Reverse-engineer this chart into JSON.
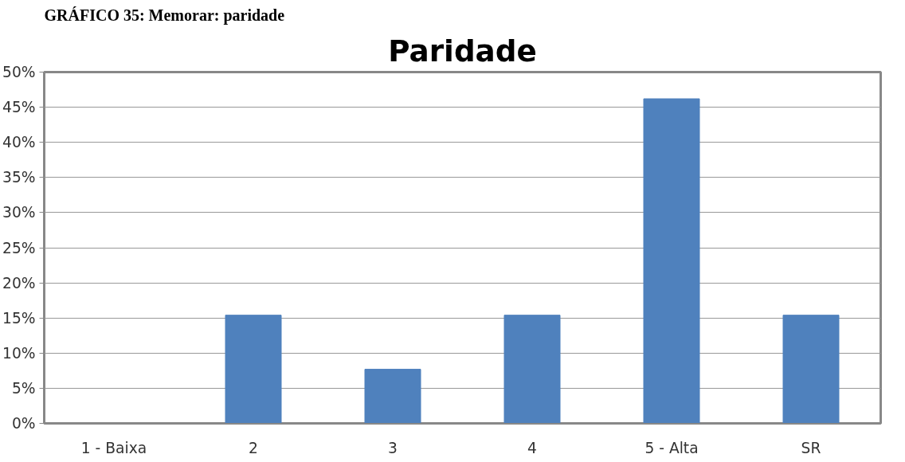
{
  "chart_data": {
    "type": "bar",
    "title": "Paridade",
    "annotations": [
      "GRÁFICO 35: Memorar: paridade"
    ],
    "categories": [
      "1 - Baixa",
      "2",
      "3",
      "4",
      "5 - Alta",
      "SR"
    ],
    "values": [
      0,
      15.4,
      7.7,
      15.4,
      46.2,
      15.4
    ],
    "color": "#4f81bd",
    "ylim": [
      0,
      50
    ],
    "yticks": [
      {
        "value": 0,
        "label": "0%"
      },
      {
        "value": 5,
        "label": "5%"
      },
      {
        "value": 10,
        "label": "10%"
      },
      {
        "value": 15,
        "label": "15%"
      },
      {
        "value": 20,
        "label": "20%"
      },
      {
        "value": 25,
        "label": "25%"
      },
      {
        "value": 30,
        "label": "30%"
      },
      {
        "value": 35,
        "label": "35%"
      },
      {
        "value": 40,
        "label": "40%"
      },
      {
        "value": 45,
        "label": "45%"
      },
      {
        "value": 50,
        "label": "50%"
      }
    ],
    "grid": "y"
  }
}
